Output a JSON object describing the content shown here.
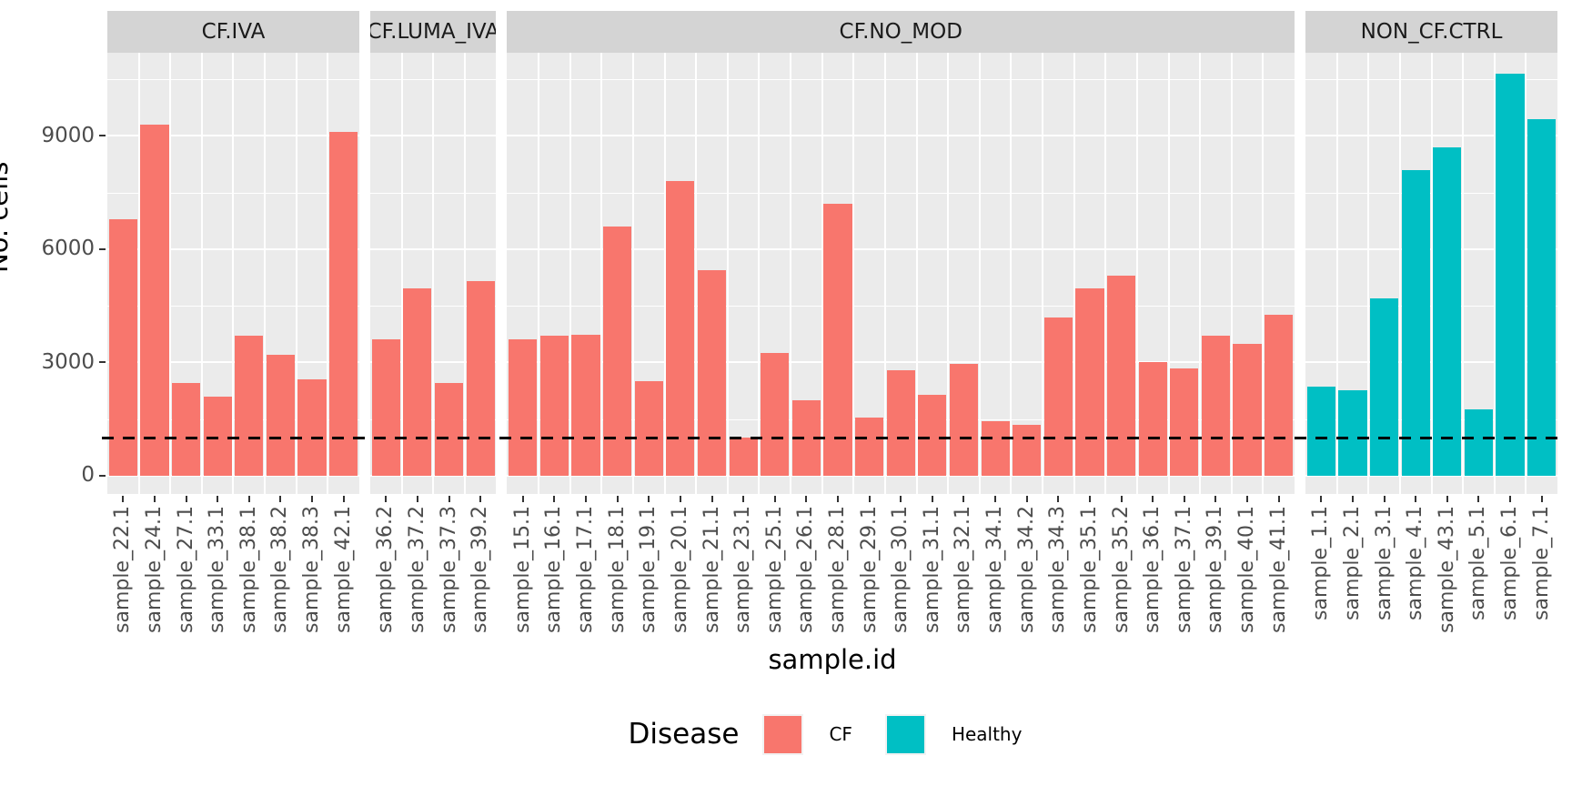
{
  "chart_data": {
    "type": "bar",
    "title": "",
    "xlabel": "sample.id",
    "ylabel": "No. cells",
    "yticks": [
      0,
      3000,
      6000,
      9000
    ],
    "minor_gridlines": [
      1500,
      4500,
      7500,
      10500
    ],
    "ylim": [
      -485,
      11200
    ],
    "grid": "on",
    "hline": {
      "value": 1000,
      "style": "dashed",
      "color": "#000000"
    },
    "facets": [
      {
        "label": "CF.IVA",
        "disease": "CF",
        "samples": [
          "sample_22.1",
          "sample_24.1",
          "sample_27.1",
          "sample_33.1",
          "sample_38.1",
          "sample_38.2",
          "sample_38.3",
          "sample_42.1"
        ],
        "values": [
          6800,
          9300,
          2450,
          2100,
          3700,
          3200,
          2550,
          9100
        ]
      },
      {
        "label": "CF.LUMA_IVA",
        "disease": "CF",
        "samples": [
          "sample_36.2",
          "sample_37.2",
          "sample_37.3",
          "sample_39.2"
        ],
        "values": [
          3600,
          4950,
          2450,
          5150
        ]
      },
      {
        "label": "CF.NO_MOD",
        "disease": "CF",
        "samples": [
          "sample_15.1",
          "sample_16.1",
          "sample_17.1",
          "sample_18.1",
          "sample_19.1",
          "sample_20.1",
          "sample_21.1",
          "sample_23.1",
          "sample_25.1",
          "sample_26.1",
          "sample_28.1",
          "sample_29.1",
          "sample_30.1",
          "sample_31.1",
          "sample_32.1",
          "sample_34.1",
          "sample_34.2",
          "sample_34.3",
          "sample_35.1",
          "sample_35.2",
          "sample_36.1",
          "sample_37.1",
          "sample_39.1",
          "sample_40.1",
          "sample_41.1"
        ],
        "values": [
          3600,
          3700,
          3720,
          6600,
          2500,
          7800,
          5450,
          1000,
          3250,
          2000,
          7200,
          1550,
          2800,
          2150,
          2950,
          1450,
          1350,
          4200,
          4950,
          5300,
          3000,
          2850,
          3700,
          3500,
          4250
        ]
      },
      {
        "label": "NON_CF.CTRL",
        "disease": "Healthy",
        "samples": [
          "sample_1.1",
          "sample_2.1",
          "sample_3.1",
          "sample_4.1",
          "sample_43.1",
          "sample_5.1",
          "sample_6.1",
          "sample_7.1"
        ],
        "values": [
          2350,
          2250,
          4700,
          8100,
          8700,
          1750,
          10650,
          9450
        ]
      }
    ],
    "legend": {
      "title": "Disease",
      "position": "bottom",
      "entries": [
        {
          "label": "CF",
          "color": "#F8766D"
        },
        {
          "label": "Healthy",
          "color": "#00BFC4"
        }
      ]
    },
    "colors": {
      "panel_bg": "#EBEBEB",
      "strip_bg": "#D4D4D4",
      "grid": "#FFFFFF",
      "axis_text": "#4D4D4D",
      "strip_text": "#1A1A1A"
    }
  }
}
